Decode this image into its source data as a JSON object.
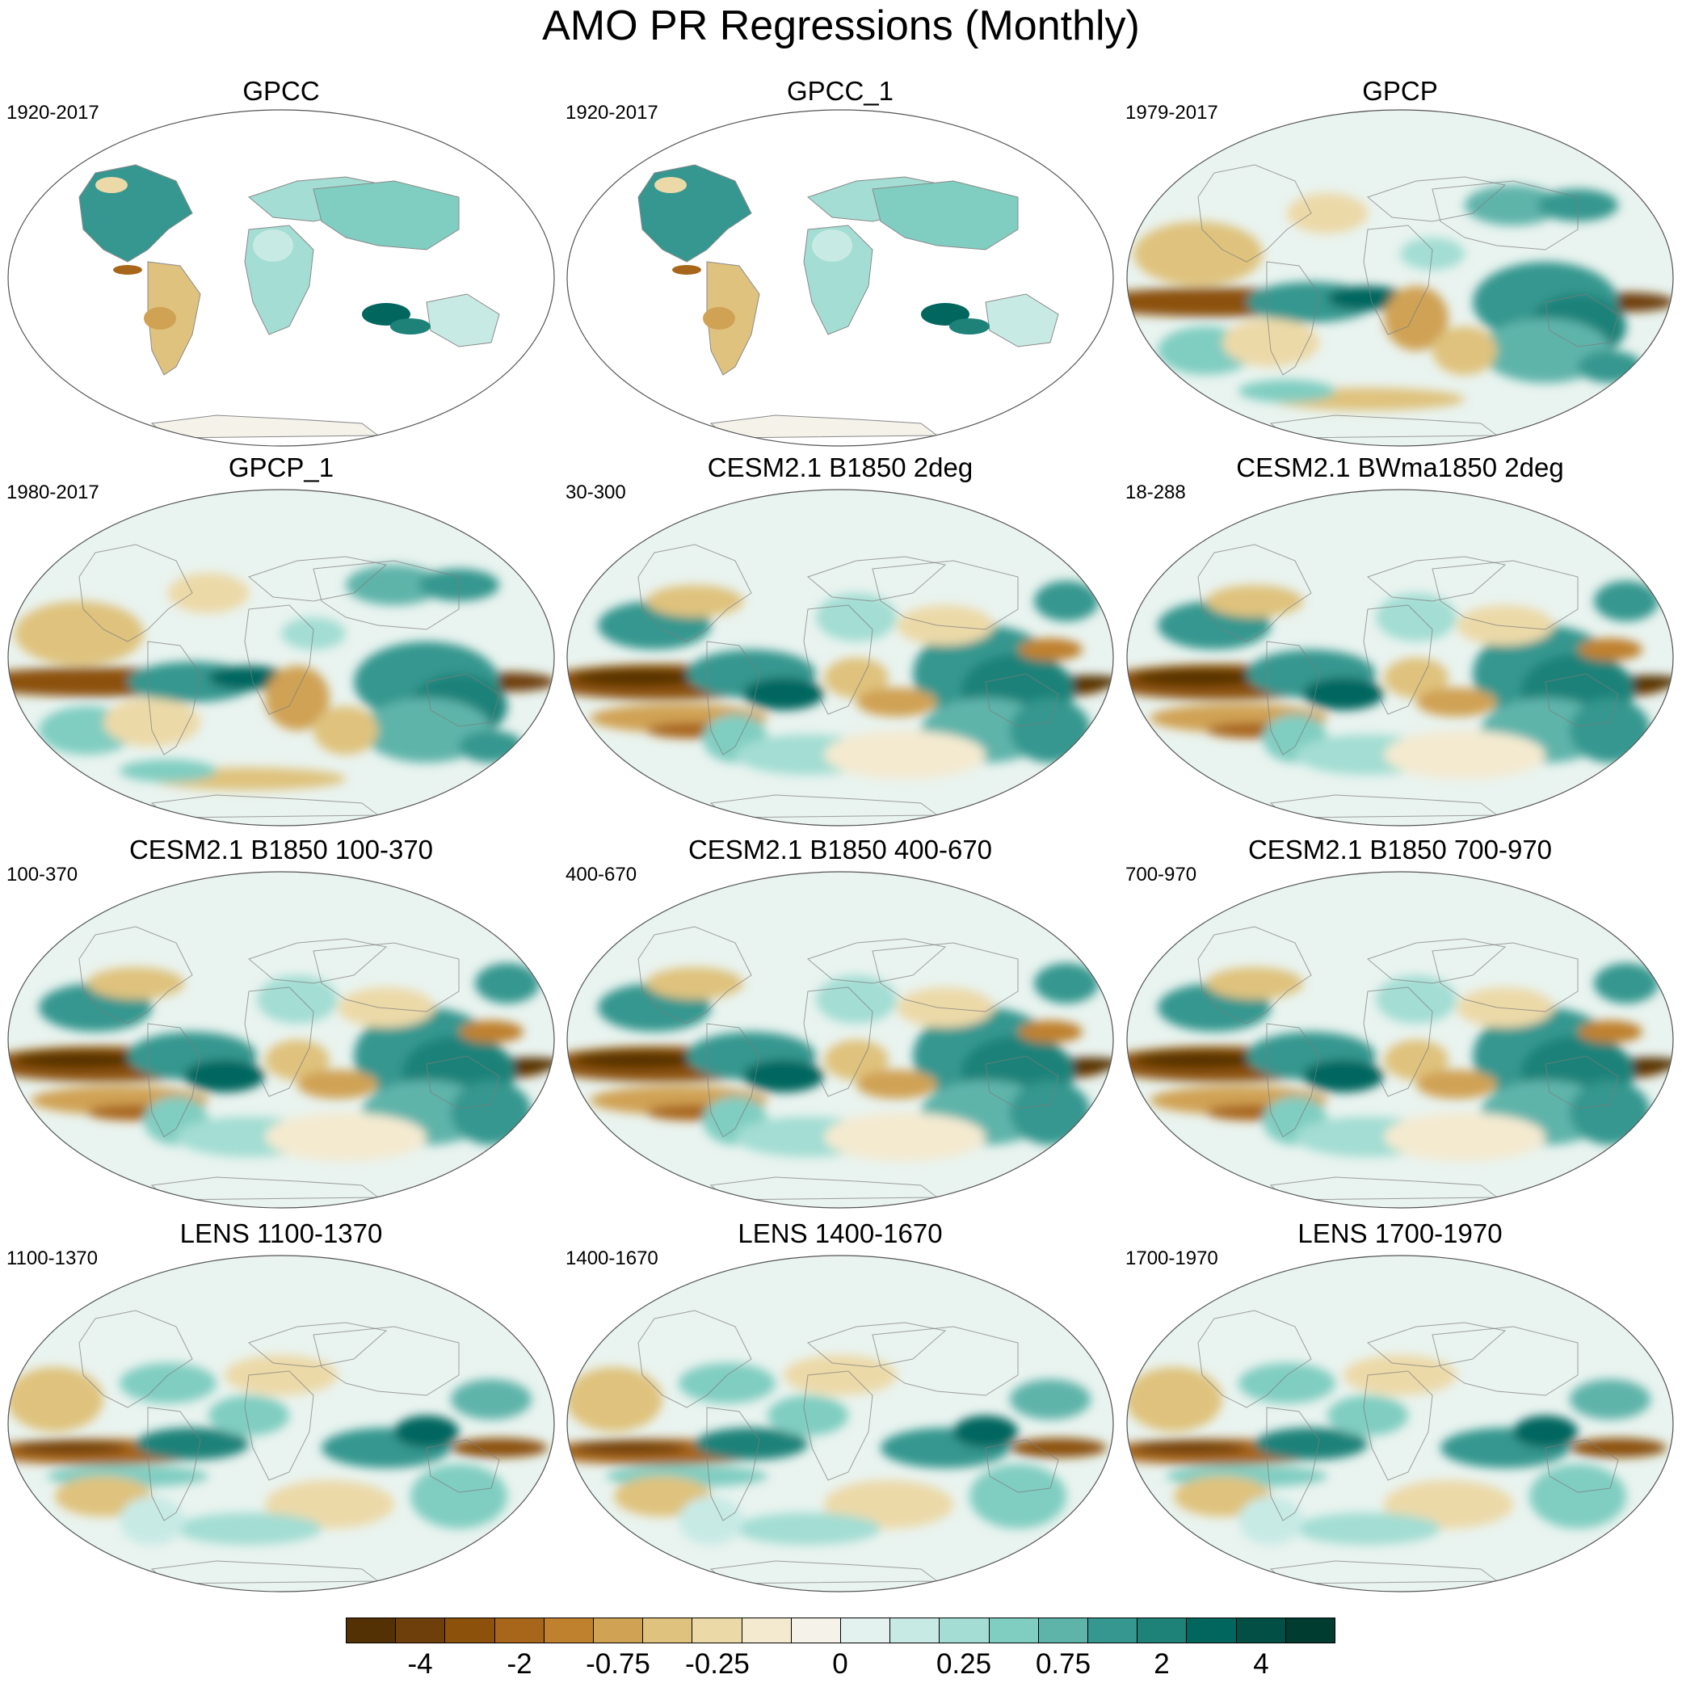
{
  "title": "AMO PR Regressions (Monthly)",
  "panels": [
    {
      "title": "GPCC",
      "period": "1920-2017",
      "coverage": "land"
    },
    {
      "title": "GPCC_1",
      "period": "1920-2017",
      "coverage": "land"
    },
    {
      "title": "GPCP",
      "period": "1979-2017",
      "coverage": "global"
    },
    {
      "title": "GPCP_1",
      "period": "1980-2017",
      "coverage": "global"
    },
    {
      "title": "CESM2.1 B1850 2deg",
      "period": "30-300",
      "coverage": "global"
    },
    {
      "title": "CESM2.1 BWma1850 2deg",
      "period": "18-288",
      "coverage": "global"
    },
    {
      "title": "CESM2.1 B1850 100-370",
      "period": "100-370",
      "coverage": "global"
    },
    {
      "title": "CESM2.1 B1850 400-670",
      "period": "400-670",
      "coverage": "global"
    },
    {
      "title": "CESM2.1 B1850 700-970",
      "period": "700-970",
      "coverage": "global"
    },
    {
      "title": "LENS 1100-1370",
      "period": "1100-1370",
      "coverage": "global"
    },
    {
      "title": "LENS 1400-1670",
      "period": "1400-1670",
      "coverage": "global"
    },
    {
      "title": "LENS 1700-1970",
      "period": "1700-1970",
      "coverage": "global"
    }
  ],
  "colorbar": {
    "colors": [
      "#543005",
      "#6f3f0b",
      "#8c510a",
      "#a8661a",
      "#bf812d",
      "#d0a254",
      "#dfc27d",
      "#ecd9a8",
      "#f4ead0",
      "#f5f2ea",
      "#e4f2ef",
      "#c7eae5",
      "#a3ddd3",
      "#80cdc1",
      "#5fb4aa",
      "#35978f",
      "#1e8279",
      "#01665e",
      "#024f45",
      "#003c30"
    ],
    "labels": [
      "-4",
      "-2",
      "-0.75",
      "-0.25",
      "0",
      "0.25",
      "0.75",
      "2",
      "4"
    ]
  }
}
